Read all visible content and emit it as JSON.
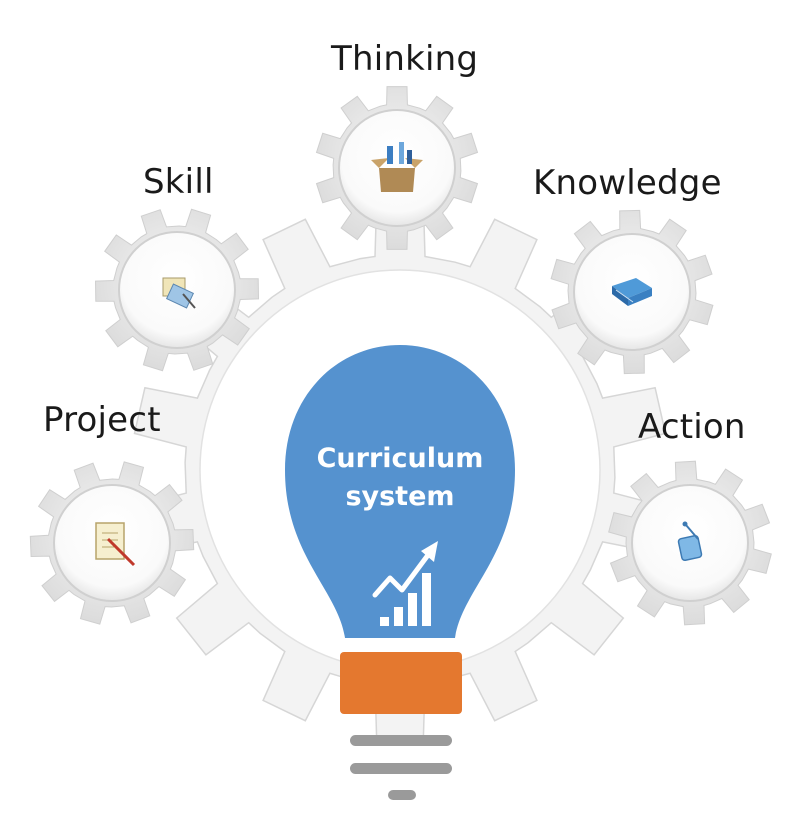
{
  "center": {
    "line1": "Curriculum",
    "line2": "system",
    "icon": "rising-bar-chart-icon"
  },
  "nodes": [
    {
      "id": "thinking",
      "label": "Thinking",
      "icon": "toolbox-icon"
    },
    {
      "id": "skill",
      "label": "Skill",
      "icon": "notepad-pen-icon"
    },
    {
      "id": "knowledge",
      "label": "Knowledge",
      "icon": "books-icon"
    },
    {
      "id": "project",
      "label": "Project",
      "icon": "document-pen-icon"
    },
    {
      "id": "action",
      "label": "Action",
      "icon": "tablet-stylus-icon"
    }
  ],
  "colors": {
    "bulb": "#5592cf",
    "base": "#e4782f",
    "gear": "#f3f3f3",
    "gear_edge": "#d6d6d6",
    "stripes": "#9a9a9a"
  }
}
